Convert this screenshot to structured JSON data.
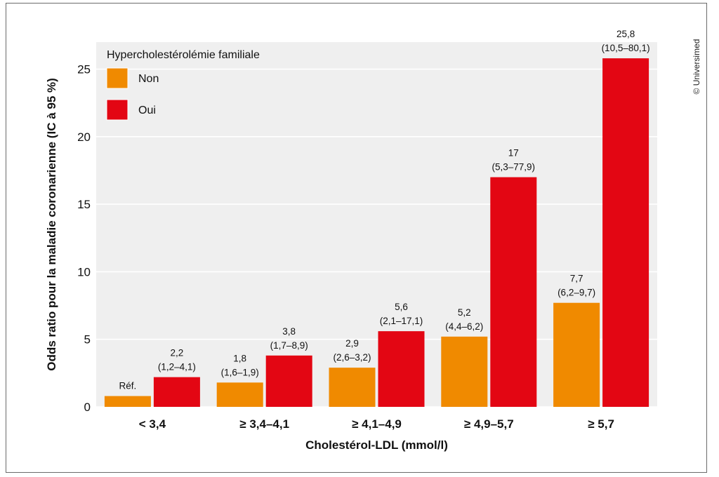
{
  "chart_data": {
    "type": "bar",
    "categories": [
      "< 3,4",
      "≥ 3,4–4,1",
      "≥ 4,1–4,9",
      "≥ 4,9–5,7",
      "≥ 5,7"
    ],
    "series": [
      {
        "name": "Non",
        "color": "#f08a00",
        "values": [
          0.8,
          1.8,
          2.9,
          5.2,
          7.7
        ],
        "labels": [
          [
            "Réf."
          ],
          [
            "1,8",
            "(1,6–1,9)"
          ],
          [
            "2,9",
            "(2,6–3,2)"
          ],
          [
            "5,2",
            "(4,4–6,2)"
          ],
          [
            "7,7",
            "(6,2–9,7)"
          ]
        ]
      },
      {
        "name": "Oui",
        "color": "#e30613",
        "values": [
          2.2,
          3.8,
          5.6,
          17,
          25.8
        ],
        "labels": [
          [
            "2,2",
            "(1,2–4,1)"
          ],
          [
            "3,8",
            "(1,7–8,9)"
          ],
          [
            "5,6",
            "(2,1–17,1)"
          ],
          [
            "17",
            "(5,3–77,9)"
          ],
          [
            "25,8",
            "(10,5–80,1)"
          ]
        ]
      }
    ],
    "legend_title": "Hypercholestérolémie familiale",
    "legend_position": "top-left",
    "xlabel": "Cholestérol-LDL (mmol/l)",
    "ylabel": "Odds ratio pour la maladie coronarienne (IC à 95 %)",
    "ylim": [
      0,
      27
    ],
    "yticks": [
      0,
      5,
      10,
      15,
      20,
      25
    ],
    "grid": true,
    "plot_background": "#efefef",
    "grid_color": "#ffffff"
  },
  "copyright": "© Universimed"
}
